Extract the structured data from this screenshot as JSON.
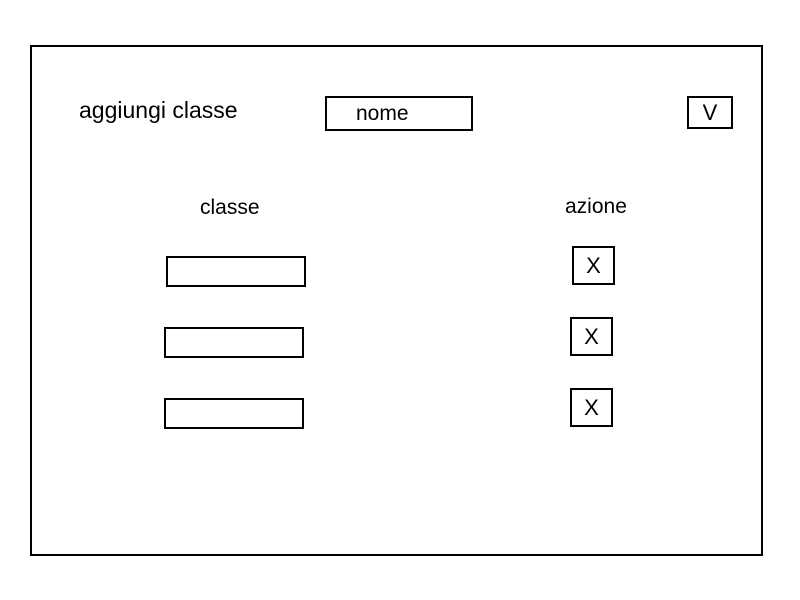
{
  "add_class": {
    "label": "aggiungi classe",
    "name_placeholder": "nome",
    "confirm_label": "V"
  },
  "table": {
    "headers": {
      "class": "classe",
      "action": "azione"
    },
    "rows": [
      {
        "class_value": "",
        "delete_label": "X"
      },
      {
        "class_value": "",
        "delete_label": "X"
      },
      {
        "class_value": "",
        "delete_label": "X"
      }
    ]
  }
}
